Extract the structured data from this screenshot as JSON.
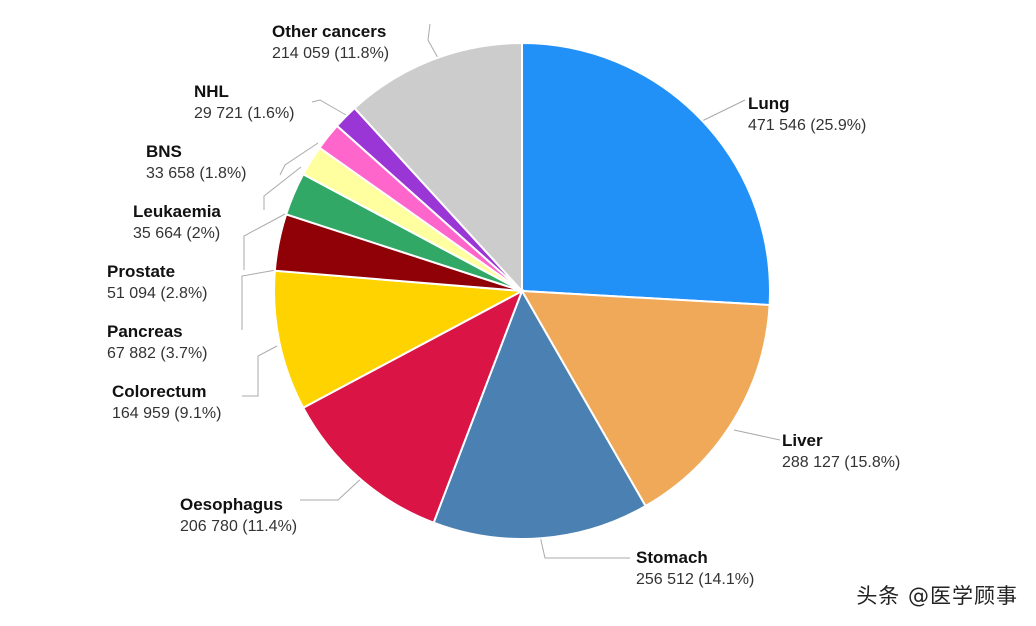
{
  "chart_data": {
    "type": "pie",
    "title": "",
    "start_angle_deg": 0,
    "direction": "clockwise",
    "slices": [
      {
        "label": "Lung",
        "count": "471 546",
        "percent": "25.9%",
        "value": 25.9,
        "color": "#2191F7"
      },
      {
        "label": "Liver",
        "count": "288 127",
        "percent": "15.8%",
        "value": 15.8,
        "color": "#EFA958"
      },
      {
        "label": "Stomach",
        "count": "256 512",
        "percent": "14.1%",
        "value": 14.1,
        "color": "#4A80B2"
      },
      {
        "label": "Oesophagus",
        "count": "206 780",
        "percent": "11.4%",
        "value": 11.4,
        "color": "#DA1445"
      },
      {
        "label": "Colorectum",
        "count": "164 959",
        "percent": "9.1%",
        "value": 9.1,
        "color": "#FFD300"
      },
      {
        "label": "Pancreas",
        "count": "67 882",
        "percent": "3.7%",
        "value": 3.7,
        "color": "#8F0007"
      },
      {
        "label": "Prostate",
        "count": "51 094",
        "percent": "2.8%",
        "value": 2.8,
        "color": "#32A866"
      },
      {
        "label": "Leukaemia",
        "count": "35 664",
        "percent": "2%",
        "value": 2.0,
        "color": "#FFFFA0"
      },
      {
        "label": "BNS",
        "count": "33 658",
        "percent": "1.8%",
        "value": 1.8,
        "color": "#FF66CC"
      },
      {
        "label": "NHL",
        "count": "29 721",
        "percent": "1.6%",
        "value": 1.6,
        "color": "#9A35D6"
      },
      {
        "label": "Other cancers",
        "count": "214 059",
        "percent": "11.8%",
        "value": 11.8,
        "color": "#CCCCCC"
      }
    ]
  },
  "watermark": "头条 @医学顾事"
}
